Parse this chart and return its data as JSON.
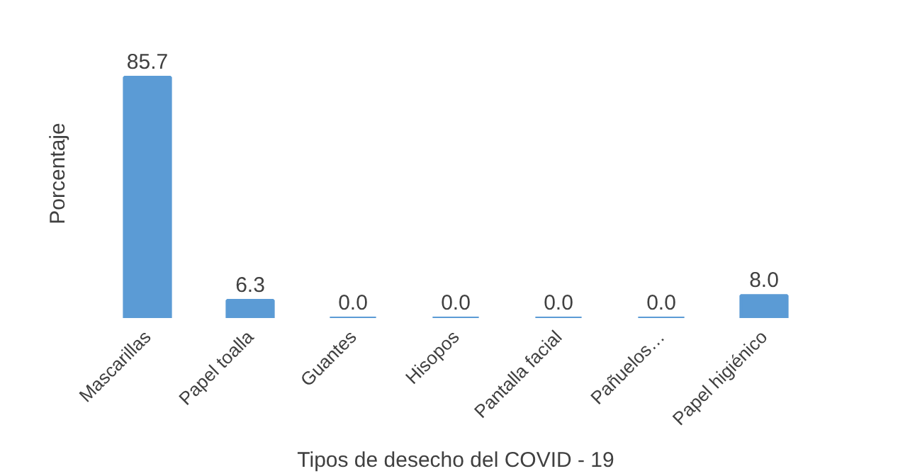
{
  "chart_data": {
    "type": "bar",
    "xlabel": "Tipos de desecho del COVID - 19",
    "ylabel": "Porcentaje",
    "categories": [
      "Mascarillas",
      "Papel toalla",
      "Guantes",
      "Hisopos",
      "Pantalla facial",
      "Pañuelos…",
      "Papel higiénico"
    ],
    "values": [
      85.7,
      6.3,
      0.0,
      0.0,
      0.0,
      0.0,
      8.0
    ],
    "value_labels": [
      "85.7",
      "6.3",
      "0.0",
      "0.0",
      "0.0",
      "0.0",
      "8.0"
    ],
    "color": "#5b9bd5",
    "grid": false
  }
}
